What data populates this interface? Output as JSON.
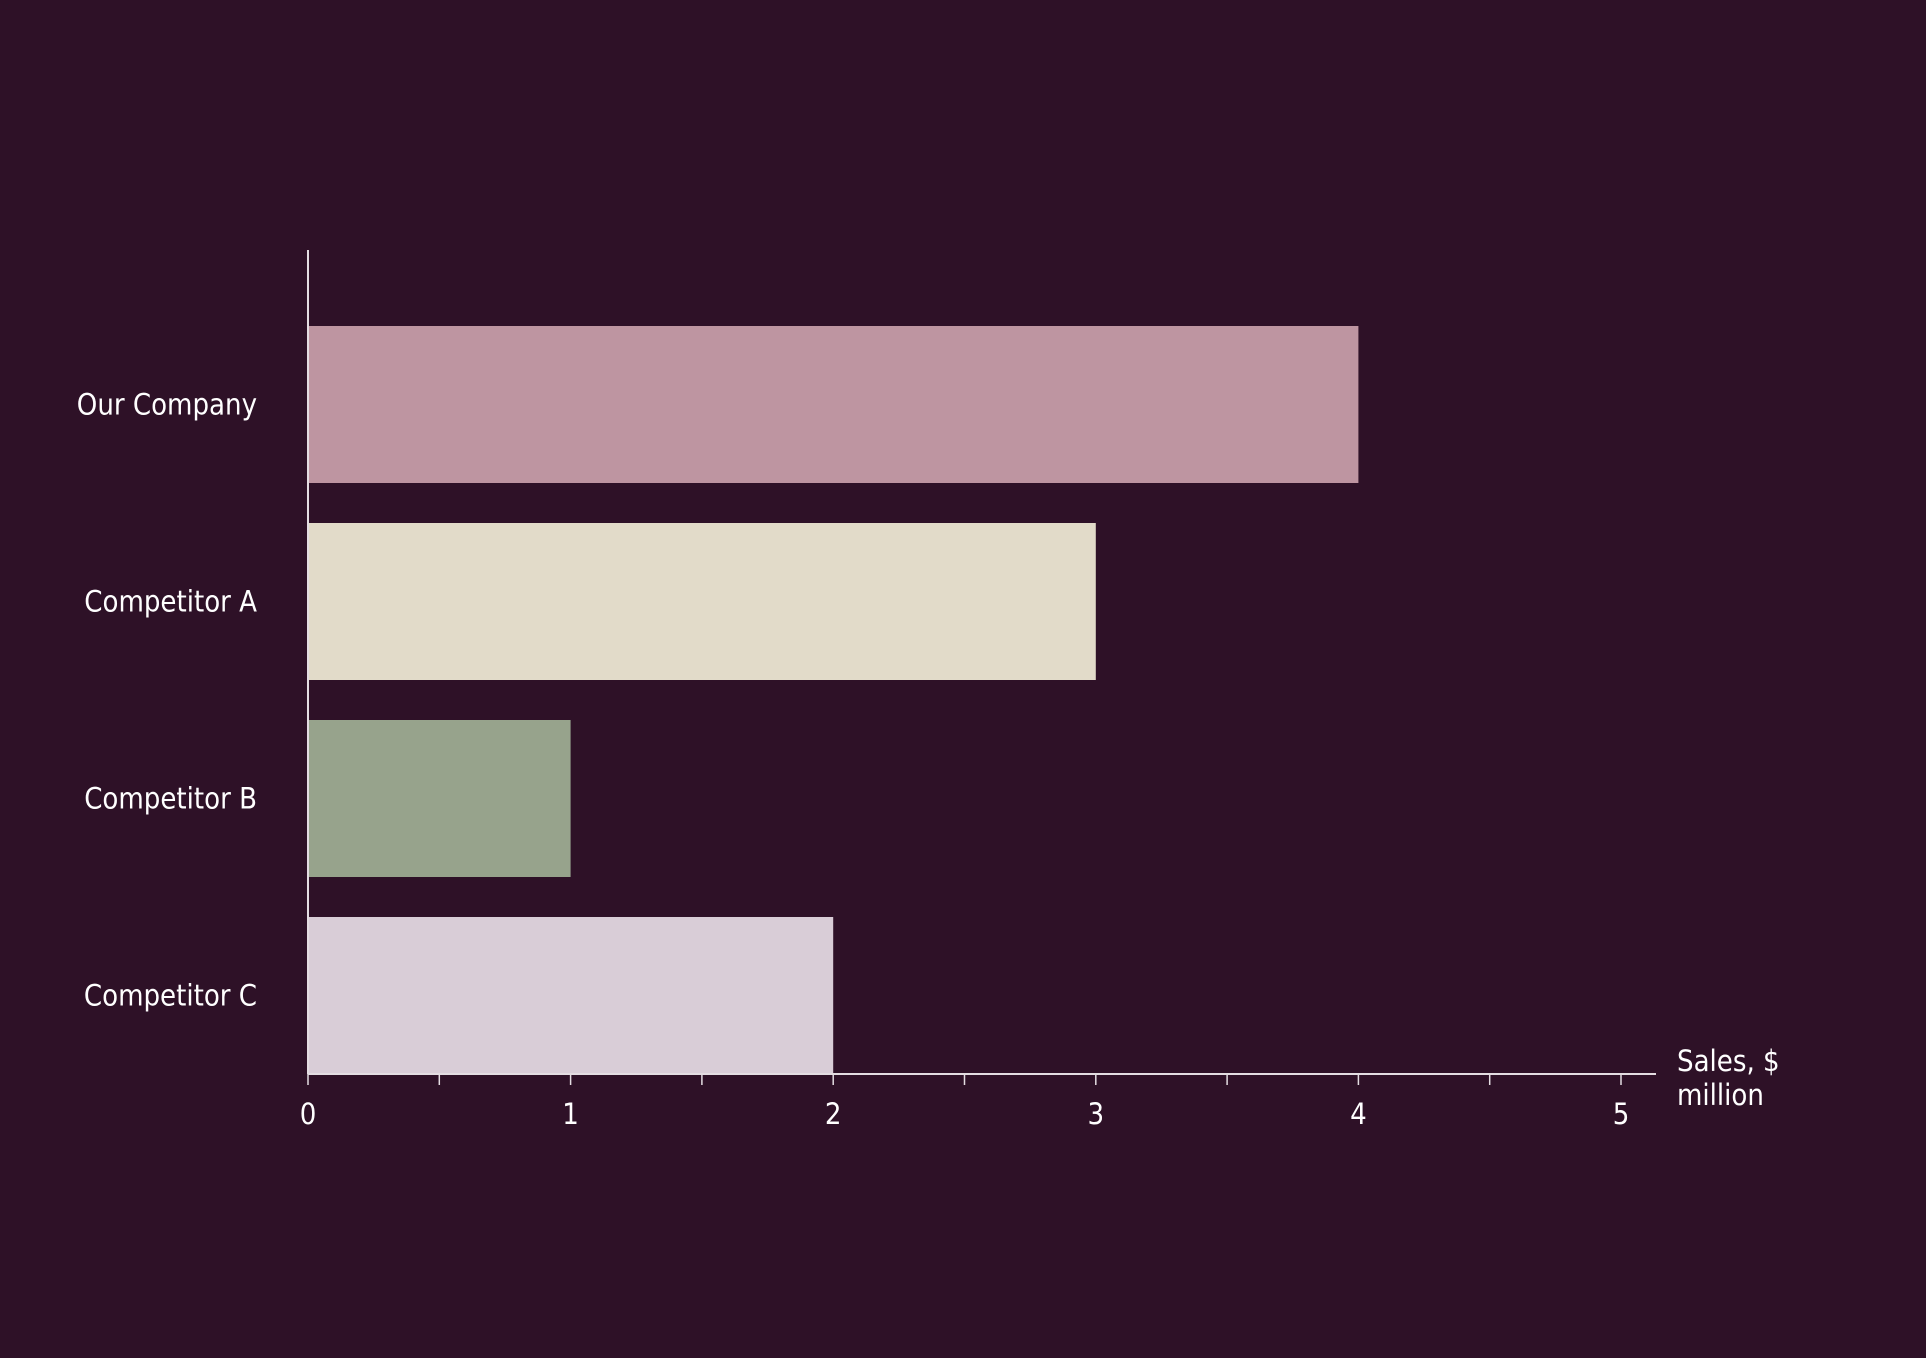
{
  "chart_data": {
    "type": "bar",
    "orientation": "horizontal",
    "categories": [
      "Our Company",
      "Competitor A",
      "Competitor B",
      "Competitor C"
    ],
    "values": [
      4,
      3,
      1,
      2
    ],
    "colors": [
      "#be95a1",
      "#e2dbc9",
      "#97a38c",
      "#d9cdd7"
    ],
    "title": "",
    "xlabel": "Sales, $ million",
    "xlabel_lines": [
      "Sales, $",
      "million"
    ],
    "ylabel": "",
    "xlim": [
      0,
      5
    ],
    "xticks": [
      0,
      1,
      2,
      3,
      4,
      5
    ],
    "minor_tick_step": 0.5,
    "grid": false,
    "legend": "none"
  },
  "theme": {
    "background": "#2e1127",
    "axis_color": "#e4dde2",
    "text_color": "#ffffff"
  }
}
